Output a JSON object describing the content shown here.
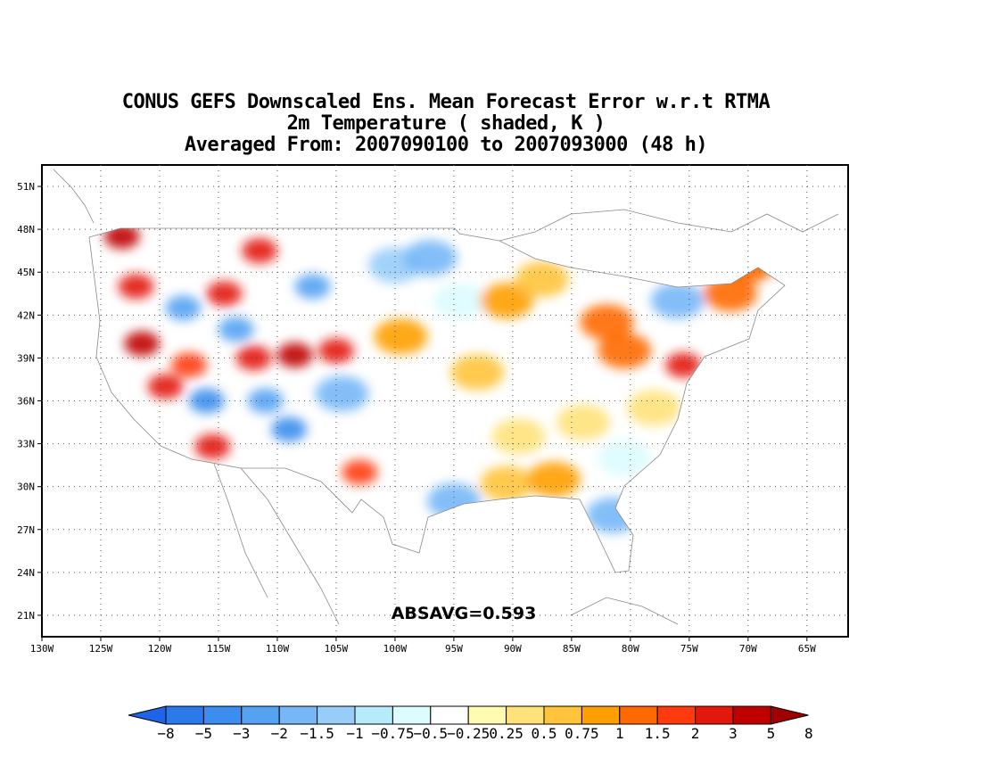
{
  "title": {
    "line1": "CONUS GEFS Downscaled Ens. Mean Forecast Error w.r.t RTMA",
    "line2": "2m Temperature ( shaded, K )",
    "line3": "Averaged From: 2007090100 to 2007093000 (48 h)"
  },
  "annotation": "ABSAVG=0.593",
  "axes": {
    "lon_range": [
      -130,
      -61.5
    ],
    "lat_range": [
      19.5,
      52.5
    ],
    "lon_ticks": [
      "130W",
      "125W",
      "120W",
      "115W",
      "110W",
      "105W",
      "100W",
      "95W",
      "90W",
      "85W",
      "80W",
      "75W",
      "70W",
      "65W"
    ],
    "lon_values": [
      -130,
      -125,
      -120,
      -115,
      -110,
      -105,
      -100,
      -95,
      -90,
      -85,
      -80,
      -75,
      -70,
      -65
    ],
    "lat_ticks": [
      "21N",
      "24N",
      "27N",
      "30N",
      "33N",
      "36N",
      "39N",
      "42N",
      "45N",
      "48N",
      "51N"
    ],
    "lat_values": [
      21,
      24,
      27,
      30,
      33,
      36,
      39,
      42,
      45,
      48,
      51
    ],
    "grid": true
  },
  "colorbar": {
    "colors": [
      "#1e64e6",
      "#2c79ea",
      "#3c8ded",
      "#55a2f2",
      "#77b7f7",
      "#98cdfa",
      "#b6ebfc",
      "#dcfcfe",
      "#ffffff",
      "#fffbb0",
      "#ffe27a",
      "#ffc43c",
      "#ffa000",
      "#ff6a00",
      "#ff3a0e",
      "#e3180c",
      "#c00000",
      "#a00000"
    ],
    "labels": [
      "−8",
      "−5",
      "−3",
      "−2",
      "−1.5",
      "−1",
      "−0.75",
      "−0.5",
      "−0.25",
      "0.25",
      "0.5",
      "0.75",
      "1",
      "1.5",
      "2",
      "3",
      "5",
      "8"
    ]
  },
  "chart_data": {
    "type": "heatmap",
    "variable": "2m Temperature forecast error",
    "units": "K",
    "absavg": 0.593,
    "field_samples": [
      {
        "lon": -123.2,
        "lat": 47.5,
        "value": 4
      },
      {
        "lon": -122.0,
        "lat": 44.0,
        "value": 3
      },
      {
        "lon": -121.5,
        "lat": 40.0,
        "value": 4
      },
      {
        "lon": -119.5,
        "lat": 37.0,
        "value": 3
      },
      {
        "lon": -118.0,
        "lat": 42.5,
        "value": -2
      },
      {
        "lon": -117.5,
        "lat": 38.5,
        "value": 2
      },
      {
        "lon": -116.0,
        "lat": 36.0,
        "value": -3
      },
      {
        "lon": -115.5,
        "lat": 32.8,
        "value": 3
      },
      {
        "lon": -114.5,
        "lat": 43.5,
        "value": 2.5
      },
      {
        "lon": -113.5,
        "lat": 41.0,
        "value": -2
      },
      {
        "lon": -112.0,
        "lat": 39.0,
        "value": 2.5
      },
      {
        "lon": -111.5,
        "lat": 46.5,
        "value": 3
      },
      {
        "lon": -111.0,
        "lat": 36.0,
        "value": -2.5
      },
      {
        "lon": -109.0,
        "lat": 34.0,
        "value": -3
      },
      {
        "lon": -108.5,
        "lat": 39.2,
        "value": 3.5
      },
      {
        "lon": -107.0,
        "lat": 44.0,
        "value": -2
      },
      {
        "lon": -105.0,
        "lat": 39.5,
        "value": 3
      },
      {
        "lon": -104.5,
        "lat": 36.5,
        "value": -1.5
      },
      {
        "lon": -103.0,
        "lat": 31.0,
        "value": 2
      },
      {
        "lon": -100.0,
        "lat": 45.5,
        "value": -1
      },
      {
        "lon": -97.0,
        "lat": 46.0,
        "value": -1.5
      },
      {
        "lon": -94.5,
        "lat": 43.0,
        "value": -0.5
      },
      {
        "lon": -95.0,
        "lat": 29.0,
        "value": -1.5
      },
      {
        "lon": -99.5,
        "lat": 40.5,
        "value": 1
      },
      {
        "lon": -93.0,
        "lat": 38.0,
        "value": 0.75
      },
      {
        "lon": -90.5,
        "lat": 43.0,
        "value": 1
      },
      {
        "lon": -87.5,
        "lat": 44.5,
        "value": 0.75
      },
      {
        "lon": -89.5,
        "lat": 33.5,
        "value": 0.5
      },
      {
        "lon": -90.5,
        "lat": 30.2,
        "value": 0.75
      },
      {
        "lon": -86.5,
        "lat": 30.5,
        "value": 1
      },
      {
        "lon": -82.0,
        "lat": 41.5,
        "value": 1.5
      },
      {
        "lon": -80.5,
        "lat": 39.5,
        "value": 1.5
      },
      {
        "lon": -75.5,
        "lat": 38.5,
        "value": 2.5
      },
      {
        "lon": -76.0,
        "lat": 43.0,
        "value": -1.5
      },
      {
        "lon": -71.5,
        "lat": 43.5,
        "value": 1.5
      },
      {
        "lon": -70.0,
        "lat": 45.5,
        "value": 1.5
      },
      {
        "lon": -81.5,
        "lat": 28.0,
        "value": -1.5
      },
      {
        "lon": -84.0,
        "lat": 34.5,
        "value": 0.5
      },
      {
        "lon": -78.0,
        "lat": 35.5,
        "value": 0.5
      },
      {
        "lon": -80.5,
        "lat": 32.0,
        "value": -0.5
      }
    ]
  }
}
